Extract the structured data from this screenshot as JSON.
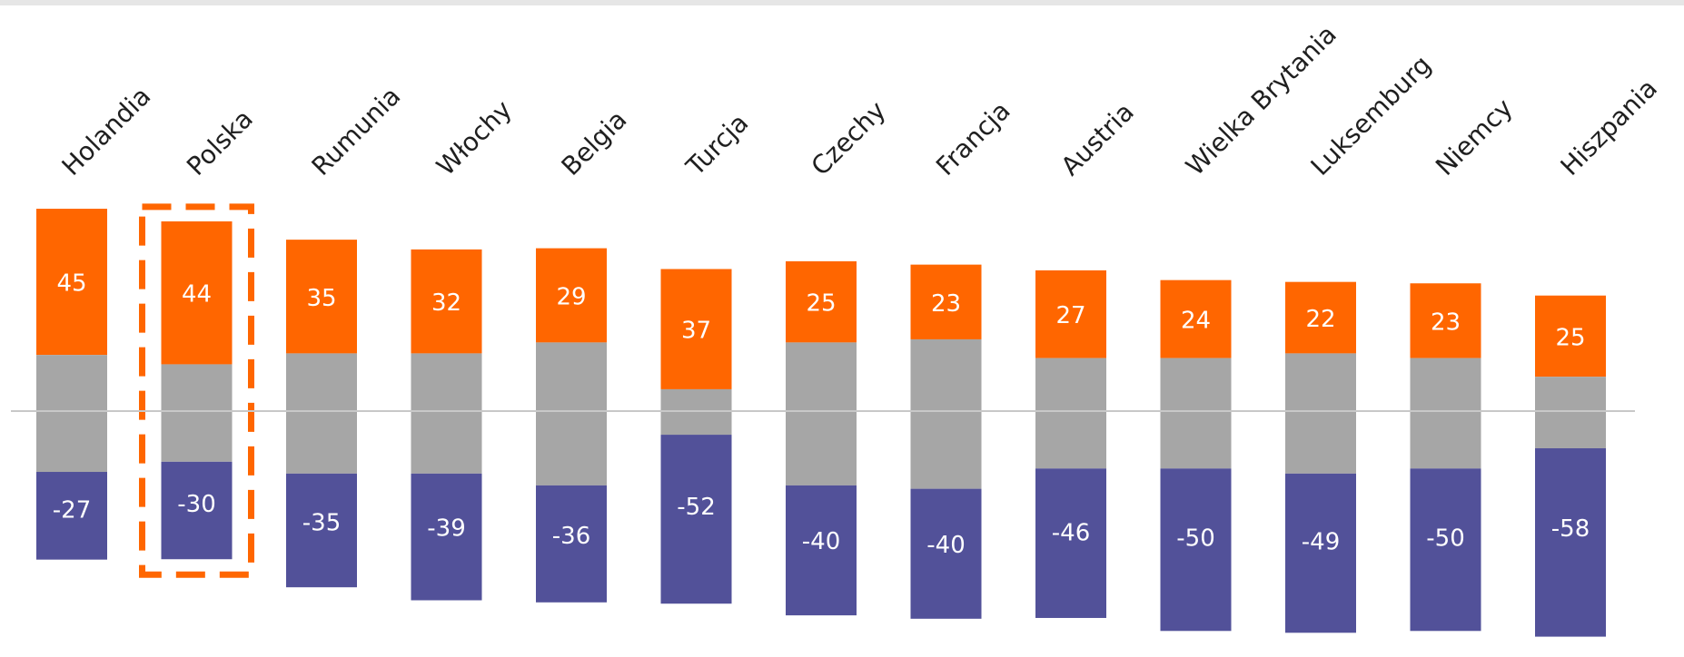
{
  "chart_data": {
    "type": "bar",
    "stacked": true,
    "categories": [
      "Holandia",
      "Polska",
      "Rumunia",
      "Włochy",
      "Belgia",
      "Turcja",
      "Czechy",
      "Francja",
      "Austria",
      "Wielka Brytania",
      "Luksemburg",
      "Niemcy",
      "Hiszpania"
    ],
    "series": [
      {
        "values": [
          45,
          44,
          35,
          32,
          29,
          37,
          25,
          23,
          27,
          24,
          22,
          23,
          25
        ]
      },
      {
        "values": [
          36,
          30,
          37,
          37,
          44,
          14,
          44,
          46,
          34,
          34,
          37,
          34,
          22
        ]
      },
      {
        "values": [
          -27,
          -30,
          -35,
          -39,
          -36,
          -52,
          -40,
          -40,
          -46,
          -50,
          -49,
          -50,
          -58
        ]
      }
    ],
    "highlight": "Polska",
    "axis_line": "horizontal reference line",
    "grid": false,
    "legend": "none"
  },
  "colors": {
    "positive": "#ff6600",
    "neutral": "#a6a6a6",
    "negative": "#525199",
    "highlight_border": "#ff6600",
    "baseline": "#c8c8c8",
    "top_band": "#e6e6e6",
    "category_label": "#1f1f1f",
    "value_label": "#ffffff"
  }
}
